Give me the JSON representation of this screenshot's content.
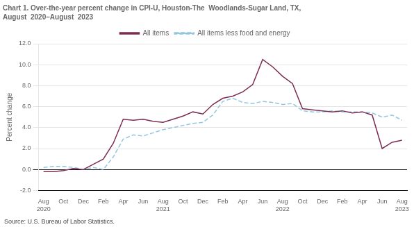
{
  "chart_data": {
    "type": "line",
    "title": "Chart 1. Over-the-year percent change in CPI-U, Houston-The  Woodlands-Sugar Land, TX,",
    "subtitle": "August  2020–August  2023",
    "y_label": "Percent change",
    "annotations": [
      "Source: U.S. Bureau of Labor Statistics."
    ],
    "categories": [
      "Aug\n2020",
      null,
      "Oct",
      null,
      "Dec",
      null,
      "Feb",
      null,
      "Apr",
      null,
      "Jun",
      null,
      "Aug\n2021",
      null,
      "Oct",
      null,
      "Dec",
      null,
      "Feb",
      null,
      "Apr",
      null,
      "Jun",
      null,
      "Aug\n2022",
      null,
      "Oct",
      null,
      "Dec",
      null,
      "Feb",
      null,
      "Apr",
      null,
      "Jun",
      null,
      "Aug\n2023"
    ],
    "series": [
      {
        "name": "All items",
        "color": "#7B2D52",
        "line_style": "solid",
        "values": [
          -0.2,
          -0.2,
          -0.1,
          0.1,
          0.0,
          0.5,
          1.0,
          2.5,
          4.8,
          4.7,
          4.8,
          4.6,
          4.5,
          4.8,
          5.1,
          5.5,
          5.3,
          6.2,
          6.8,
          7.0,
          7.4,
          8.1,
          10.5,
          9.8,
          8.9,
          8.2,
          5.8,
          5.7,
          5.6,
          5.5,
          5.6,
          5.4,
          5.5,
          5.2,
          2.0,
          2.6,
          2.8
        ]
      },
      {
        "name": "All items less food and energy",
        "color": "#93C6E0",
        "line_style": "dashed",
        "values": [
          0.2,
          0.3,
          0.3,
          0.2,
          0.0,
          0.2,
          0.0,
          1.2,
          2.9,
          3.3,
          3.2,
          3.5,
          3.8,
          4.0,
          4.2,
          4.4,
          4.5,
          5.2,
          6.5,
          6.8,
          6.4,
          6.3,
          6.5,
          6.4,
          6.2,
          6.3,
          5.6,
          5.5,
          5.5,
          5.6,
          5.5,
          5.5,
          5.5,
          5.4,
          5.0,
          5.2,
          4.7
        ]
      }
    ],
    "ylim": [
      -2.0,
      12.0
    ],
    "yticks": [
      {
        "value": -2.0,
        "label": "-2.0"
      },
      {
        "value": 0.0,
        "label": "0.0"
      },
      {
        "value": 2.0,
        "label": "2.0"
      },
      {
        "value": 4.0,
        "label": "4.0"
      },
      {
        "value": 6.0,
        "label": "6.0"
      },
      {
        "value": 8.0,
        "label": "8.0"
      },
      {
        "value": 10.0,
        "label": "10.0"
      },
      {
        "value": 12.0,
        "label": "12.0"
      }
    ],
    "grid": true,
    "legend": "top"
  }
}
